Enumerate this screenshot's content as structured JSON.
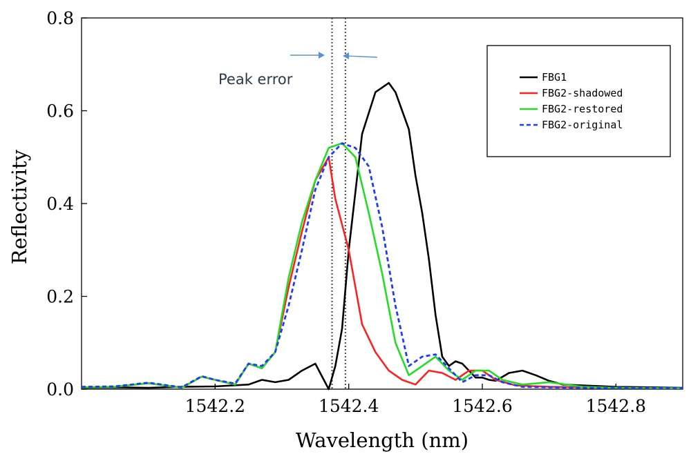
{
  "chart_data": {
    "type": "line",
    "title": "",
    "xlabel": "Wavelength (nm)",
    "ylabel": "Reflectivity",
    "xlim": [
      1542.0,
      1542.9
    ],
    "ylim": [
      0.0,
      0.8
    ],
    "xticks": [
      1542.2,
      1542.4,
      1542.6,
      1542.8
    ],
    "xtick_labels": [
      "1542.2",
      "1542.4",
      "1542.6",
      "1542.8"
    ],
    "yticks": [
      0.0,
      0.2,
      0.4,
      0.6,
      0.8
    ],
    "ytick_labels": [
      "0.0",
      "0.2",
      "0.4",
      "0.6",
      "0.8"
    ],
    "grid": false,
    "legend_position": "top-right",
    "series": [
      {
        "name": "FBG1",
        "color": "#000000",
        "dash": "solid",
        "x": [
          1542.0,
          1542.05,
          1542.1,
          1542.15,
          1542.2,
          1542.25,
          1542.27,
          1542.29,
          1542.31,
          1542.33,
          1542.35,
          1542.37,
          1542.38,
          1542.39,
          1542.4,
          1542.42,
          1542.44,
          1542.46,
          1542.47,
          1542.48,
          1542.49,
          1542.5,
          1542.51,
          1542.52,
          1542.53,
          1542.54,
          1542.55,
          1542.56,
          1542.57,
          1542.58,
          1542.59,
          1542.6,
          1542.61,
          1542.62,
          1542.64,
          1542.66,
          1542.68,
          1542.7,
          1542.72,
          1542.75,
          1542.8,
          1542.85,
          1542.9
        ],
        "y": [
          0.003,
          0.004,
          0.003,
          0.005,
          0.006,
          0.01,
          0.02,
          0.015,
          0.02,
          0.04,
          0.055,
          0.0,
          0.05,
          0.13,
          0.3,
          0.55,
          0.64,
          0.66,
          0.64,
          0.6,
          0.56,
          0.46,
          0.38,
          0.28,
          0.16,
          0.07,
          0.05,
          0.06,
          0.055,
          0.04,
          0.025,
          0.025,
          0.02,
          0.018,
          0.035,
          0.04,
          0.03,
          0.018,
          0.01,
          0.008,
          0.005,
          0.004,
          0.003
        ]
      },
      {
        "name": "FBG2-shadowed",
        "color": "#ff2020",
        "dash": "solid",
        "x": [
          1542.0,
          1542.05,
          1542.1,
          1542.15,
          1542.18,
          1542.2,
          1542.23,
          1542.25,
          1542.27,
          1542.29,
          1542.31,
          1542.33,
          1542.35,
          1542.37,
          1542.38,
          1542.4,
          1542.42,
          1542.44,
          1542.46,
          1542.48,
          1542.5,
          1542.52,
          1542.54,
          1542.56,
          1542.58,
          1542.6,
          1542.62,
          1542.65,
          1542.7,
          1542.8,
          1542.9
        ],
        "y": [
          0.004,
          0.005,
          0.013,
          0.003,
          0.027,
          0.02,
          0.01,
          0.055,
          0.045,
          0.08,
          0.22,
          0.34,
          0.45,
          0.5,
          0.41,
          0.3,
          0.14,
          0.08,
          0.04,
          0.02,
          0.01,
          0.04,
          0.035,
          0.02,
          0.04,
          0.04,
          0.02,
          0.008,
          0.005,
          0.003,
          0.002
        ]
      },
      {
        "name": "FBG2-restored",
        "color": "#22dd22",
        "dash": "solid",
        "x": [
          1542.0,
          1542.05,
          1542.1,
          1542.15,
          1542.18,
          1542.2,
          1542.23,
          1542.25,
          1542.27,
          1542.29,
          1542.31,
          1542.33,
          1542.35,
          1542.37,
          1542.39,
          1542.41,
          1542.43,
          1542.45,
          1542.47,
          1542.49,
          1542.51,
          1542.53,
          1542.55,
          1542.57,
          1542.59,
          1542.61,
          1542.63,
          1542.66,
          1542.7,
          1542.75,
          1542.8,
          1542.9
        ],
        "y": [
          0.004,
          0.005,
          0.013,
          0.003,
          0.027,
          0.02,
          0.01,
          0.055,
          0.045,
          0.08,
          0.24,
          0.36,
          0.45,
          0.52,
          0.53,
          0.5,
          0.38,
          0.25,
          0.1,
          0.03,
          0.05,
          0.07,
          0.04,
          0.02,
          0.04,
          0.04,
          0.02,
          0.01,
          0.015,
          0.005,
          0.003,
          0.002
        ]
      },
      {
        "name": "FBG2-original",
        "color": "#1f3bff",
        "dash": "dashed",
        "x": [
          1542.0,
          1542.05,
          1542.1,
          1542.15,
          1542.18,
          1542.2,
          1542.23,
          1542.25,
          1542.27,
          1542.29,
          1542.31,
          1542.33,
          1542.35,
          1542.37,
          1542.39,
          1542.41,
          1542.43,
          1542.45,
          1542.47,
          1542.49,
          1542.51,
          1542.53,
          1542.55,
          1542.57,
          1542.59,
          1542.61,
          1542.63,
          1542.66,
          1542.7,
          1542.75,
          1542.8,
          1542.9
        ],
        "y": [
          0.005,
          0.006,
          0.014,
          0.004,
          0.028,
          0.02,
          0.012,
          0.055,
          0.05,
          0.08,
          0.18,
          0.3,
          0.43,
          0.5,
          0.53,
          0.52,
          0.48,
          0.35,
          0.18,
          0.05,
          0.07,
          0.075,
          0.045,
          0.015,
          0.03,
          0.03,
          0.015,
          0.005,
          0.004,
          0.003,
          0.002,
          0.002
        ]
      }
    ],
    "annotations": {
      "peak_error_label": "Peak error",
      "vline_shadowed_x": 1542.375,
      "vline_original_x": 1542.395
    }
  }
}
